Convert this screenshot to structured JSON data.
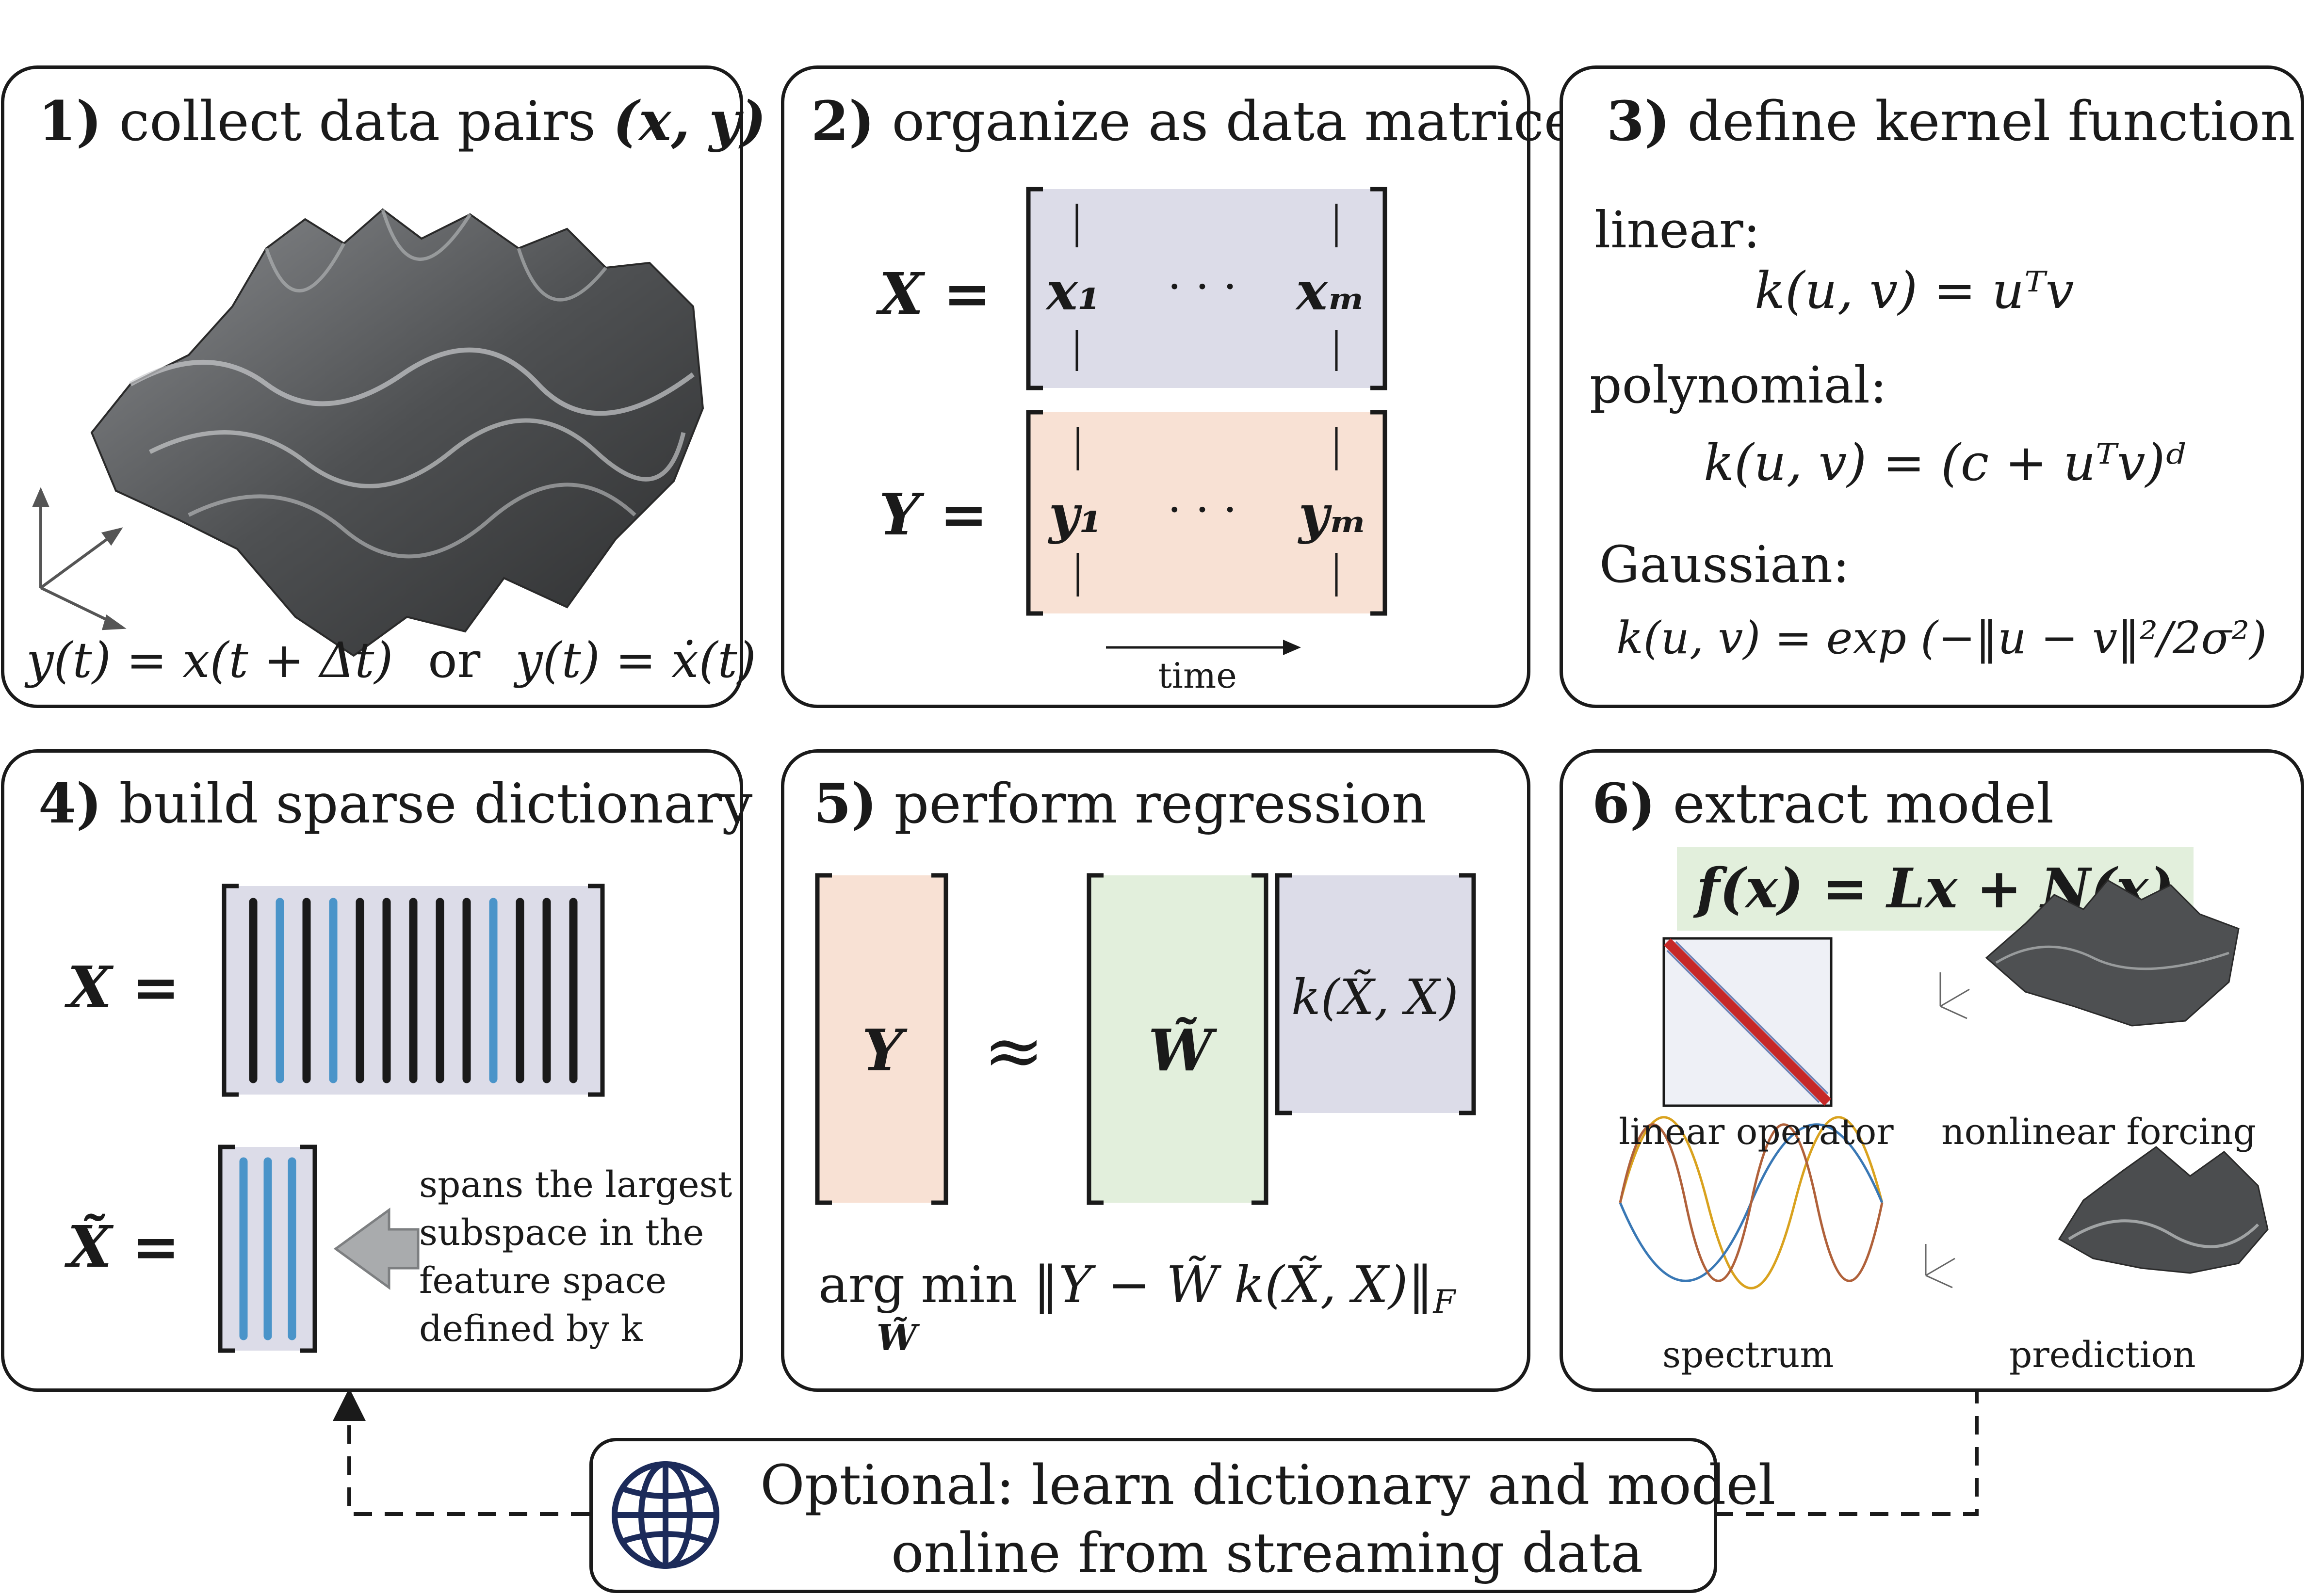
{
  "colors": {
    "lavender": "#dcdce8",
    "peach": "#f8e1d4",
    "mint": "#e2efdc",
    "blue_bar": "#4a94c9",
    "ink": "#1a1a1a",
    "surface": "#5a5c5e"
  },
  "panels": {
    "p1": {
      "num": "1)",
      "title": "collect data pairs",
      "pair": "(x, y)",
      "eq_left": "y(t) = x(t + Δt)",
      "eq_or": "or",
      "eq_right": "y(t) = ẋ(t)"
    },
    "p2": {
      "num": "2)",
      "title": "organize as data matrices",
      "X_lhs": "X =",
      "Y_lhs": "Y =",
      "x_first": "x₁",
      "x_last": "xₘ",
      "y_first": "y₁",
      "y_last": "yₘ",
      "dots": "· · ·",
      "time_label": "time"
    },
    "p3": {
      "num": "3)",
      "title": "define kernel function",
      "linear_label": "linear:",
      "linear_eq": "k(u, v) = uᵀv",
      "poly_label": "polynomial:",
      "poly_eq": "k(u, v) = (c + uᵀv)ᵈ",
      "gauss_label": "Gaussian:",
      "gauss_eq": "k(u, v) = exp (−‖u − v‖²/2σ²)"
    },
    "p4": {
      "num": "4)",
      "title": "build sparse dictionary",
      "X_lhs": "X =",
      "Xt_lhs": "X̃ =",
      "note_lines": [
        "spans the largest",
        "subspace in the",
        "feature space",
        "defined by k"
      ]
    },
    "p5": {
      "num": "5)",
      "title": "perform regression",
      "Y": "Y",
      "approx": "≈",
      "W": "W̃",
      "K": "k(X̃, X)",
      "argmin": "arg min",
      "argmin_sub": "W̃",
      "norm_expr": "‖Y − W̃ k(X̃, X)‖",
      "norm_sub": "F"
    },
    "p6": {
      "num": "6)",
      "title": "extract model",
      "model_eq": "f(x) = Lx + N(x)",
      "thumbs": [
        "linear operator",
        "nonlinear forcing",
        "spectrum",
        "prediction"
      ]
    },
    "optional": {
      "line1": "Optional: learn dictionary and model",
      "line2": "online from streaming data",
      "icon": "globe-icon"
    }
  }
}
